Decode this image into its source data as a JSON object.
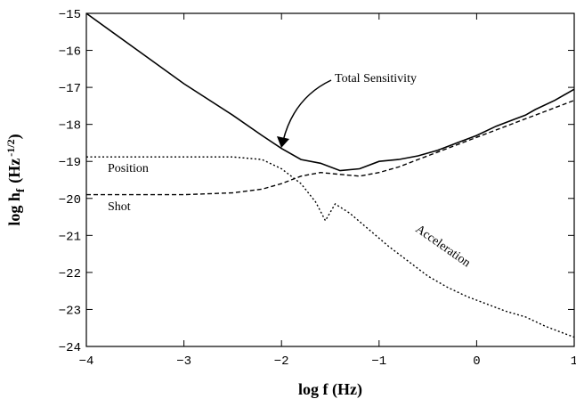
{
  "chart_data": {
    "type": "line",
    "xlabel": "log f (Hz)",
    "ylabel": "log h_f (Hz^-1/2)",
    "ylabel_parts": {
      "main": "log h",
      "sub": "f",
      "unit_open": "(Hz",
      "unit_sup": "-1/2",
      "unit_close": ")"
    },
    "xlim": [
      -4,
      1
    ],
    "ylim": [
      -24,
      -15
    ],
    "x_ticks": [
      -4,
      -3,
      -2,
      -1,
      0,
      1
    ],
    "y_ticks": [
      -24,
      -23,
      -22,
      -21,
      -20,
      -19,
      -18,
      -17,
      -16,
      -15
    ],
    "x_tick_labels": [
      "−4",
      "−3",
      "−2",
      "−1",
      "0",
      "1"
    ],
    "y_tick_labels": [
      "−24",
      "−23",
      "−22",
      "−21",
      "−20",
      "−19",
      "−18",
      "−17",
      "−16",
      "−15"
    ],
    "grid": false,
    "legend": "none",
    "annotations": [
      {
        "text": "Total Sensitivity",
        "x": -1.52,
        "y": -17.2
      },
      {
        "text": "Position",
        "x": -3.55,
        "y": -19.3
      },
      {
        "text": "Shot",
        "x": -3.55,
        "y": -20.35
      },
      {
        "text": "Acceleration",
        "x": -1.1,
        "y": -21.1,
        "rotate": 35
      }
    ],
    "series": [
      {
        "style": "solid",
        "x": [
          -4.0,
          -3.5,
          -3.0,
          -2.5,
          -2.2,
          -2.0,
          -1.8,
          -1.6,
          -1.4,
          -1.2,
          -1.0,
          -0.8,
          -0.6,
          -0.4,
          -0.2,
          0.0,
          0.2,
          0.4,
          0.5,
          0.6,
          0.8,
          1.0
        ],
        "y": [
          -15.0,
          -15.95,
          -16.9,
          -17.75,
          -18.3,
          -18.65,
          -18.95,
          -19.05,
          -19.25,
          -19.2,
          -19.0,
          -18.95,
          -18.85,
          -18.7,
          -18.5,
          -18.3,
          -18.05,
          -17.85,
          -17.75,
          -17.6,
          -17.35,
          -17.05
        ]
      },
      {
        "style": "dashed",
        "x": [
          -4.0,
          -3.0,
          -2.5,
          -2.2,
          -2.0,
          -1.8,
          -1.6,
          -1.4,
          -1.2,
          -1.0,
          -0.8,
          -0.6,
          -0.4,
          -0.2,
          0.0,
          0.2,
          0.4,
          0.5,
          0.6,
          0.8,
          1.0
        ],
        "y": [
          -19.9,
          -19.9,
          -19.85,
          -19.75,
          -19.6,
          -19.4,
          -19.3,
          -19.35,
          -19.4,
          -19.3,
          -19.15,
          -18.95,
          -18.75,
          -18.55,
          -18.35,
          -18.15,
          -17.95,
          -17.85,
          -17.75,
          -17.55,
          -17.35
        ]
      },
      {
        "style": "dotted",
        "x": [
          -4.0,
          -3.0,
          -2.5,
          -2.2,
          -2.0,
          -1.8,
          -1.65,
          -1.55,
          -1.45,
          -1.3,
          -1.1,
          -0.9,
          -0.7,
          -0.5,
          -0.3,
          -0.1,
          0.1,
          0.3,
          0.5,
          0.7,
          0.9,
          1.0
        ],
        "y": [
          -18.88,
          -18.88,
          -18.88,
          -18.95,
          -19.2,
          -19.6,
          -20.1,
          -20.6,
          -20.15,
          -20.4,
          -20.85,
          -21.3,
          -21.7,
          -22.1,
          -22.4,
          -22.65,
          -22.85,
          -23.05,
          -23.2,
          -23.45,
          -23.65,
          -23.75
        ]
      }
    ]
  }
}
